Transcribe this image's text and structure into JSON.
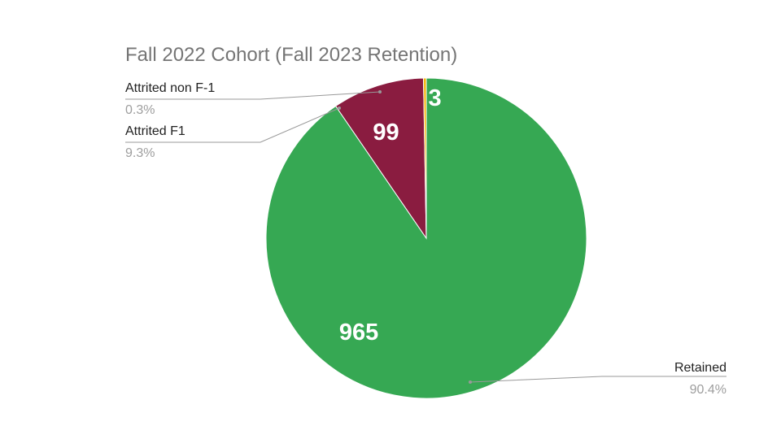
{
  "chart_data": {
    "type": "pie",
    "title": "Fall 2022 Cohort (Fall 2023 Retention)",
    "slices": [
      {
        "name": "Retained",
        "value": 965,
        "percent_label": "90.4%",
        "color": "#36a853"
      },
      {
        "name": "Attrited non F-1",
        "value": 3,
        "percent_label": "0.3%",
        "color": "#f4b400"
      },
      {
        "name": "Attrited F1",
        "value": 99,
        "percent_label": "9.3%",
        "color": "#8a1c40"
      }
    ],
    "start_angle_deg": 0,
    "direction": "clockwise",
    "legend_placement": "labeled callouts"
  }
}
